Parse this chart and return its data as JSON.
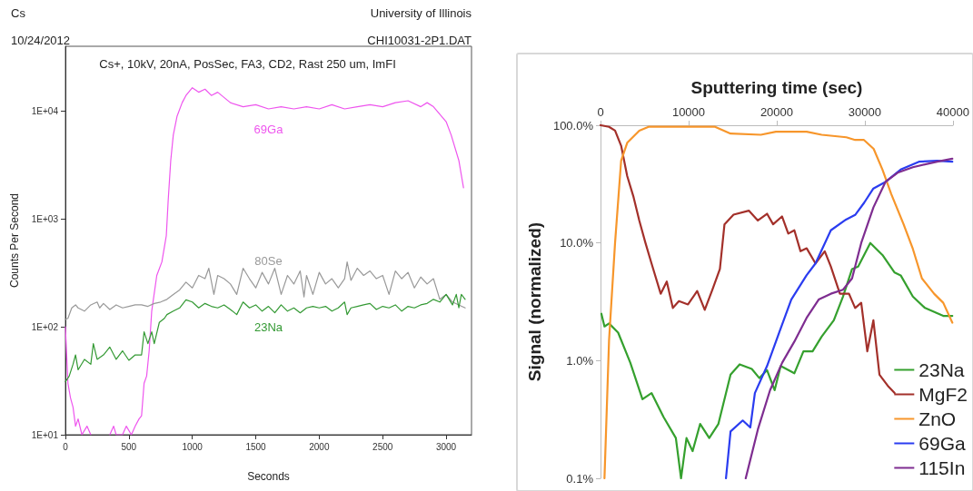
{
  "chart_data": [
    {
      "type": "line",
      "title": "Cs+, 10kV, 20nA, PosSec, FA3, CD2, Rast 250 um, ImFI",
      "xlabel": "Seconds",
      "ylabel": "Counts Per Second",
      "annotations": [
        "Cs",
        "University of Illinois",
        "10/24/2012",
        "CHI10031-2P1.DAT"
      ],
      "log": "y",
      "xlim": [
        0,
        3200
      ],
      "xticks": [
        0,
        500,
        1000,
        1500,
        2000,
        2500,
        3000
      ],
      "ylim": [
        10,
        40000
      ],
      "yticks": [
        {
          "value": 10,
          "label": "1E+01"
        },
        {
          "value": 100,
          "label": "1E+02"
        },
        {
          "value": 1000,
          "label": "1E+03"
        },
        {
          "value": 10000,
          "label": "1E+04"
        }
      ],
      "grid": false,
      "legend": false,
      "marker": "none",
      "line_style": "solid",
      "series": [
        {
          "name": "69Ga",
          "color": "#ee55ee",
          "x": [
            0,
            20,
            40,
            60,
            80,
            100,
            130,
            170,
            200,
            230,
            350,
            380,
            400,
            450,
            480,
            520,
            550,
            580,
            600,
            620,
            640,
            660,
            680,
            720,
            760,
            780,
            795,
            810,
            830,
            850,
            880,
            920,
            950,
            1000,
            1050,
            1100,
            1150,
            1200,
            1300,
            1400,
            1500,
            1600,
            1700,
            1800,
            1900,
            2000,
            2100,
            2200,
            2300,
            2400,
            2500,
            2600,
            2700,
            2800,
            2850,
            2900,
            3000,
            3040,
            3100,
            3137
          ],
          "values": [
            100,
            30,
            22,
            18,
            12,
            14,
            10,
            12,
            10,
            null,
            10,
            12,
            10,
            10,
            12,
            10,
            12,
            14,
            15,
            30,
            35,
            60,
            140,
            300,
            400,
            550,
            700,
            1500,
            3500,
            6000,
            9000,
            12000,
            14000,
            16500,
            15000,
            16000,
            14000,
            15000,
            12000,
            11000,
            11500,
            10500,
            11000,
            10500,
            11000,
            10500,
            11500,
            10500,
            11000,
            11500,
            11000,
            12000,
            12500,
            11000,
            12000,
            11000,
            8000,
            6000,
            3500,
            1950
          ]
        },
        {
          "name": "80Se",
          "color": "#999999",
          "x": [
            0,
            20,
            50,
            80,
            100,
            150,
            200,
            250,
            270,
            300,
            350,
            400,
            450,
            500,
            550,
            600,
            650,
            700,
            750,
            800,
            850,
            900,
            950,
            1000,
            1050,
            1100,
            1130,
            1170,
            1200,
            1250,
            1300,
            1350,
            1400,
            1450,
            1500,
            1550,
            1600,
            1650,
            1700,
            1750,
            1800,
            1850,
            1880,
            1900,
            1950,
            2000,
            2050,
            2100,
            2150,
            2200,
            2220,
            2250,
            2300,
            2350,
            2400,
            2450,
            2500,
            2550,
            2600,
            2650,
            2700,
            2750,
            2800,
            2850,
            2900,
            2950,
            3000,
            3050,
            3100,
            3150
          ],
          "values": [
            117,
            120,
            150,
            160,
            150,
            140,
            160,
            170,
            150,
            165,
            145,
            160,
            150,
            155,
            160,
            160,
            155,
            165,
            170,
            180,
            200,
            220,
            260,
            230,
            300,
            280,
            350,
            200,
            300,
            280,
            250,
            200,
            350,
            280,
            230,
            320,
            250,
            350,
            200,
            300,
            250,
            330,
            190,
            300,
            200,
            320,
            250,
            280,
            230,
            280,
            400,
            270,
            350,
            300,
            330,
            280,
            300,
            200,
            330,
            280,
            320,
            230,
            290,
            250,
            280,
            180,
            200,
            170,
            160,
            150
          ]
        },
        {
          "name": "23Na",
          "color": "#339933",
          "x": [
            0,
            30,
            60,
            80,
            100,
            150,
            200,
            220,
            250,
            300,
            350,
            400,
            450,
            500,
            550,
            600,
            620,
            650,
            680,
            700,
            740,
            780,
            800,
            850,
            900,
            950,
            1000,
            1050,
            1100,
            1150,
            1200,
            1250,
            1300,
            1350,
            1400,
            1450,
            1500,
            1550,
            1600,
            1650,
            1700,
            1750,
            1800,
            1850,
            1900,
            1950,
            2000,
            2050,
            2100,
            2150,
            2200,
            2220,
            2250,
            2300,
            2350,
            2400,
            2450,
            2500,
            2550,
            2600,
            2650,
            2700,
            2750,
            2800,
            2850,
            2900,
            2950,
            3000,
            3050,
            3080,
            3100,
            3120,
            3150
          ],
          "values": [
            31,
            35,
            45,
            55,
            40,
            50,
            45,
            70,
            50,
            55,
            65,
            50,
            60,
            49,
            55,
            55,
            90,
            70,
            90,
            70,
            110,
            120,
            130,
            140,
            150,
            178,
            170,
            150,
            165,
            155,
            150,
            160,
            145,
            130,
            170,
            150,
            160,
            140,
            155,
            135,
            160,
            140,
            150,
            135,
            150,
            155,
            150,
            155,
            140,
            150,
            170,
            130,
            150,
            155,
            160,
            165,
            145,
            155,
            150,
            160,
            140,
            155,
            150,
            160,
            165,
            180,
            170,
            200,
            160,
            200,
            150,
            200,
            180
          ]
        }
      ]
    },
    {
      "type": "line",
      "xlabel": "Sputtering time (sec)",
      "ylabel": "Signal (normalized)",
      "log": "y",
      "xlim": [
        0,
        40000
      ],
      "xticks": [
        0,
        10000,
        20000,
        30000,
        40000
      ],
      "ylim": [
        0.1,
        100
      ],
      "yticks": [
        {
          "value": 0.1,
          "label": "0.1%"
        },
        {
          "value": 1,
          "label": "1.0%"
        },
        {
          "value": 10,
          "label": "10.0%"
        },
        {
          "value": 100,
          "label": "100.0%"
        }
      ],
      "grid": false,
      "legend": "bottom right",
      "marker": "none",
      "line_style": "solid",
      "series": [
        {
          "name": "23Na",
          "color": "#35a02e",
          "x": [
            100,
            450,
            970,
            2000,
            3380,
            4760,
            5790,
            7170,
            8550,
            9140,
            9760,
            10450,
            11310,
            12340,
            13380,
            14760,
            15790,
            17170,
            18030,
            18900,
            19760,
            20450,
            22000,
            23030,
            24070,
            25100,
            26480,
            27520,
            28550,
            29240,
            30620,
            32000,
            33380,
            34070,
            35450,
            36830,
            38900,
            39930
          ],
          "values": [
            2.5,
            1.95,
            2.07,
            1.73,
            0.96,
            0.47,
            0.53,
            0.33,
            0.22,
            0.1,
            0.22,
            0.17,
            0.29,
            0.22,
            0.29,
            0.76,
            0.93,
            0.85,
            0.71,
            0.83,
            0.56,
            0.9,
            0.78,
            1.2,
            1.2,
            1.6,
            2.2,
            3.5,
            6,
            6.3,
            10,
            7.9,
            5.6,
            5.3,
            3.5,
            2.8,
            2.4,
            2.4
          ]
        },
        {
          "name": "MgF2",
          "color": "#a3302a",
          "x": [
            0,
            965,
            1650,
            2340,
            3030,
            3720,
            4400,
            5100,
            5790,
            6830,
            7520,
            8210,
            8900,
            9930,
            10970,
            11830,
            12690,
            13550,
            14070,
            15100,
            16830,
            17860,
            18900,
            19590,
            20600,
            21310,
            22000,
            22700,
            23400,
            24400,
            25450,
            26140,
            27170,
            28200,
            28900,
            29590,
            30280,
            30970,
            31660,
            32690,
            33380
          ],
          "values": [
            100,
            97,
            90,
            67,
            37,
            25,
            15.5,
            10,
            6.7,
            3.7,
            4.7,
            2.8,
            3.2,
            3,
            3.9,
            2.7,
            4,
            6,
            14.4,
            17.4,
            18.8,
            15.5,
            17.7,
            14.4,
            16.8,
            12,
            12.8,
            8.5,
            9,
            6.7,
            8.5,
            6.3,
            3.7,
            3.7,
            2.8,
            3.1,
            1.2,
            2.2,
            0.76,
            0.6,
            0.53
          ]
        },
        {
          "name": "ZnO",
          "color": "#f7962b",
          "x": [
            450,
            970,
            1650,
            2340,
            3030,
            4400,
            5450,
            13000,
            14760,
            18200,
            19900,
            23400,
            25100,
            27900,
            28900,
            29900,
            31000,
            32000,
            33000,
            34400,
            35450,
            36480,
            37860,
            38900,
            39930
          ],
          "values": [
            0.1,
            1.5,
            10,
            50,
            71,
            90,
            97,
            97,
            85,
            83,
            88,
            88,
            83,
            79,
            75,
            75,
            63,
            42,
            26,
            14.4,
            8.9,
            5,
            3.7,
            3.1,
            2.1
          ]
        },
        {
          "name": "69Ga",
          "color": "#2a3cf0",
          "x": [
            14240,
            14760,
            16140,
            17000,
            17520,
            18900,
            20280,
            21650,
            23380,
            24400,
            26140,
            27860,
            28900,
            29930,
            30970,
            32340,
            34070,
            36140,
            38210,
            39930
          ],
          "values": [
            0.1,
            0.25,
            0.31,
            0.27,
            0.53,
            0.9,
            1.73,
            3.3,
            5.3,
            6.7,
            12.8,
            15.8,
            17.3,
            22,
            29,
            33,
            42,
            49,
            50,
            49
          ]
        },
        {
          "name": "115In",
          "color": "#7e2d90",
          "x": [
            16480,
            17860,
            19240,
            20620,
            22000,
            23380,
            24760,
            26140,
            27520,
            28550,
            29590,
            30970,
            32340,
            33720,
            35450,
            38210,
            39930
          ],
          "values": [
            0.1,
            0.26,
            0.56,
            0.96,
            1.45,
            2.3,
            3.3,
            3.7,
            4,
            5,
            10,
            20,
            33,
            39.5,
            44,
            49,
            52
          ]
        }
      ]
    }
  ]
}
